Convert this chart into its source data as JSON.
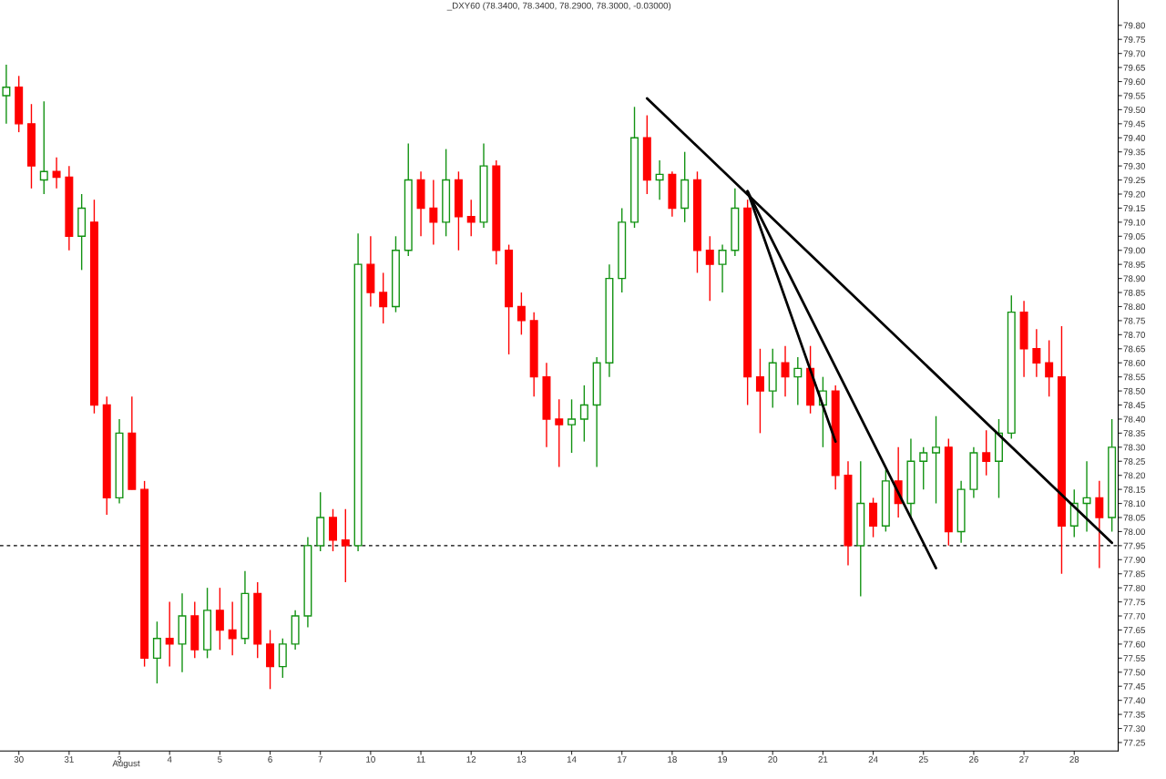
{
  "chart_data": {
    "type": "candlestick",
    "title": "_DXY60 (78.3400, 78.3400, 78.2900, 78.3000, -0.03000)",
    "categories": [
      null,
      "30",
      null,
      null,
      null,
      "31",
      null,
      null,
      null,
      "3",
      null,
      null,
      null,
      "4",
      null,
      null,
      null,
      "5",
      null,
      null,
      null,
      "6",
      null,
      null,
      null,
      "7",
      null,
      null,
      null,
      "10",
      null,
      null,
      null,
      "11",
      null,
      null,
      null,
      "12",
      null,
      null,
      null,
      "13",
      null,
      null,
      null,
      "14",
      null,
      null,
      null,
      "17",
      null,
      null,
      null,
      "18",
      null,
      null,
      null,
      "19",
      null,
      null,
      null,
      "20",
      null,
      null,
      null,
      "21",
      null,
      null,
      null,
      "24",
      null,
      null,
      null,
      "25",
      null,
      null,
      null,
      "26",
      null,
      null,
      null,
      "27",
      null,
      null,
      null,
      "28",
      null,
      null,
      null
    ],
    "ohlc": [
      [
        79.55,
        79.66,
        79.45,
        79.58
      ],
      [
        79.58,
        79.62,
        79.42,
        79.45
      ],
      [
        79.45,
        79.52,
        79.22,
        79.3
      ],
      [
        79.25,
        79.53,
        79.2,
        79.28
      ],
      [
        79.28,
        79.33,
        79.22,
        79.26
      ],
      [
        79.26,
        79.3,
        79.0,
        79.05
      ],
      [
        79.05,
        79.2,
        78.93,
        79.15
      ],
      [
        79.1,
        79.18,
        78.42,
        78.45
      ],
      [
        78.45,
        78.48,
        78.06,
        78.12
      ],
      [
        78.12,
        78.4,
        78.1,
        78.35
      ],
      [
        78.35,
        78.48,
        78.15,
        78.15
      ],
      [
        78.15,
        78.18,
        77.52,
        77.55
      ],
      [
        77.55,
        77.68,
        77.46,
        77.62
      ],
      [
        77.62,
        77.75,
        77.52,
        77.6
      ],
      [
        77.6,
        77.78,
        77.5,
        77.7
      ],
      [
        77.7,
        77.75,
        77.55,
        77.58
      ],
      [
        77.58,
        77.8,
        77.55,
        77.72
      ],
      [
        77.72,
        77.8,
        77.58,
        77.65
      ],
      [
        77.65,
        77.75,
        77.56,
        77.62
      ],
      [
        77.62,
        77.86,
        77.6,
        77.78
      ],
      [
        77.78,
        77.82,
        77.55,
        77.6
      ],
      [
        77.6,
        77.65,
        77.44,
        77.52
      ],
      [
        77.52,
        77.62,
        77.48,
        77.6
      ],
      [
        77.6,
        77.72,
        77.58,
        77.7
      ],
      [
        77.7,
        77.98,
        77.66,
        77.95
      ],
      [
        77.95,
        78.14,
        77.93,
        78.05
      ],
      [
        78.05,
        78.08,
        77.93,
        77.97
      ],
      [
        77.97,
        78.08,
        77.82,
        77.95
      ],
      [
        77.95,
        79.06,
        77.93,
        78.95
      ],
      [
        78.95,
        79.05,
        78.8,
        78.85
      ],
      [
        78.85,
        78.92,
        78.74,
        78.8
      ],
      [
        78.8,
        79.05,
        78.78,
        79.0
      ],
      [
        79.0,
        79.38,
        78.98,
        79.25
      ],
      [
        79.25,
        79.28,
        79.05,
        79.15
      ],
      [
        79.15,
        79.25,
        79.02,
        79.1
      ],
      [
        79.1,
        79.36,
        79.05,
        79.25
      ],
      [
        79.25,
        79.28,
        79.0,
        79.12
      ],
      [
        79.12,
        79.18,
        79.05,
        79.1
      ],
      [
        79.1,
        79.38,
        79.08,
        79.3
      ],
      [
        79.3,
        79.32,
        78.95,
        79.0
      ],
      [
        79.0,
        79.02,
        78.63,
        78.8
      ],
      [
        78.8,
        78.85,
        78.7,
        78.75
      ],
      [
        78.75,
        78.78,
        78.48,
        78.55
      ],
      [
        78.55,
        78.6,
        78.3,
        78.4
      ],
      [
        78.4,
        78.47,
        78.23,
        78.38
      ],
      [
        78.38,
        78.47,
        78.28,
        78.4
      ],
      [
        78.4,
        78.52,
        78.32,
        78.45
      ],
      [
        78.45,
        78.62,
        78.23,
        78.6
      ],
      [
        78.6,
        78.95,
        78.55,
        78.9
      ],
      [
        78.9,
        79.15,
        78.85,
        79.1
      ],
      [
        79.1,
        79.51,
        79.08,
        79.4
      ],
      [
        79.4,
        79.48,
        79.2,
        79.25
      ],
      [
        79.25,
        79.32,
        79.18,
        79.27
      ],
      [
        79.27,
        79.28,
        79.12,
        79.15
      ],
      [
        79.15,
        79.35,
        79.1,
        79.25
      ],
      [
        79.25,
        79.28,
        78.92,
        79.0
      ],
      [
        79.0,
        79.05,
        78.82,
        78.95
      ],
      [
        78.95,
        79.02,
        78.85,
        79.0
      ],
      [
        79.0,
        79.22,
        78.98,
        79.15
      ],
      [
        79.15,
        79.18,
        78.45,
        78.55
      ],
      [
        78.55,
        78.65,
        78.35,
        78.5
      ],
      [
        78.5,
        78.65,
        78.44,
        78.6
      ],
      [
        78.6,
        78.66,
        78.48,
        78.55
      ],
      [
        78.55,
        78.62,
        78.45,
        78.58
      ],
      [
        78.58,
        78.66,
        78.42,
        78.45
      ],
      [
        78.45,
        78.55,
        78.3,
        78.5
      ],
      [
        78.5,
        78.52,
        78.15,
        78.2
      ],
      [
        78.2,
        78.25,
        77.88,
        77.95
      ],
      [
        77.95,
        78.25,
        77.77,
        78.1
      ],
      [
        78.1,
        78.12,
        77.98,
        78.02
      ],
      [
        78.02,
        78.22,
        78.0,
        78.18
      ],
      [
        78.18,
        78.3,
        78.05,
        78.1
      ],
      [
        78.1,
        78.33,
        78.05,
        78.25
      ],
      [
        78.25,
        78.3,
        78.15,
        78.28
      ],
      [
        78.28,
        78.41,
        78.1,
        78.3
      ],
      [
        78.3,
        78.33,
        77.95,
        78.0
      ],
      [
        78.0,
        78.18,
        77.96,
        78.15
      ],
      [
        78.15,
        78.3,
        78.12,
        78.28
      ],
      [
        78.28,
        78.36,
        78.2,
        78.25
      ],
      [
        78.25,
        78.4,
        78.12,
        78.35
      ],
      [
        78.35,
        78.84,
        78.33,
        78.78
      ],
      [
        78.78,
        78.82,
        78.55,
        78.65
      ],
      [
        78.65,
        78.72,
        78.55,
        78.6
      ],
      [
        78.6,
        78.68,
        78.48,
        78.55
      ],
      [
        78.55,
        78.73,
        77.85,
        78.02
      ],
      [
        78.02,
        78.15,
        77.98,
        78.1
      ],
      [
        78.1,
        78.25,
        78.0,
        78.12
      ],
      [
        78.12,
        78.18,
        77.87,
        78.05
      ],
      [
        78.05,
        78.4,
        78.0,
        78.3
      ]
    ],
    "colors": [
      "#129212",
      "#ff0000",
      "#ff0000",
      "#129212",
      "#ff0000",
      "#ff0000",
      "#129212",
      "#ff0000",
      "#ff0000",
      "#129212",
      "#ff0000",
      "#ff0000",
      "#129212",
      "#ff0000",
      "#129212",
      "#ff0000",
      "#129212",
      "#ff0000",
      "#ff0000",
      "#129212",
      "#ff0000",
      "#ff0000",
      "#129212",
      "#129212",
      "#129212",
      "#129212",
      "#ff0000",
      "#ff0000",
      "#129212",
      "#ff0000",
      "#ff0000",
      "#129212",
      "#129212",
      "#ff0000",
      "#ff0000",
      "#129212",
      "#ff0000",
      "#ff0000",
      "#129212",
      "#ff0000",
      "#ff0000",
      "#ff0000",
      "#ff0000",
      "#ff0000",
      "#ff0000",
      "#129212",
      "#129212",
      "#129212",
      "#129212",
      "#129212",
      "#129212",
      "#ff0000",
      "#129212",
      "#ff0000",
      "#129212",
      "#ff0000",
      "#ff0000",
      "#129212",
      "#129212",
      "#ff0000",
      "#ff0000",
      "#129212",
      "#ff0000",
      "#129212",
      "#ff0000",
      "#129212",
      "#ff0000",
      "#ff0000",
      "#129212",
      "#ff0000",
      "#129212",
      "#ff0000",
      "#129212",
      "#129212",
      "#129212",
      "#ff0000",
      "#129212",
      "#129212",
      "#ff0000",
      "#129212",
      "#129212",
      "#ff0000",
      "#ff0000",
      "#ff0000",
      "#ff0000",
      "#129212",
      "#129212",
      "#ff0000",
      "#129212"
    ],
    "series": [
      {
        "type": "line",
        "color": "#000000",
        "values": [
          null,
          null,
          null,
          null,
          null,
          null,
          null,
          null,
          null,
          null,
          null,
          null,
          null,
          null,
          null,
          null,
          null,
          null,
          null,
          null,
          null,
          null,
          null,
          null,
          null,
          null,
          null,
          null,
          null,
          null,
          null,
          null,
          null,
          null,
          null,
          null,
          null,
          null,
          null,
          null,
          null,
          null,
          null,
          null,
          null,
          null,
          null,
          null,
          null,
          null,
          null,
          79.54,
          null,
          null,
          null,
          null,
          null,
          null,
          null,
          null,
          null,
          null,
          null,
          null,
          null,
          null,
          null,
          null,
          null,
          null,
          null,
          null,
          null,
          null,
          null,
          null,
          null,
          null,
          null,
          null,
          null,
          null,
          null,
          null,
          null,
          null,
          null,
          null,
          77.96
        ]
      },
      {
        "type": "line",
        "color": "#000000",
        "values": [
          null,
          null,
          null,
          null,
          null,
          null,
          null,
          null,
          null,
          null,
          null,
          null,
          null,
          null,
          null,
          null,
          null,
          null,
          null,
          null,
          null,
          null,
          null,
          null,
          null,
          null,
          null,
          null,
          null,
          null,
          null,
          null,
          null,
          null,
          null,
          null,
          null,
          null,
          null,
          null,
          null,
          null,
          null,
          null,
          null,
          null,
          null,
          null,
          null,
          null,
          null,
          null,
          null,
          null,
          null,
          null,
          null,
          null,
          null,
          79.21,
          null,
          null,
          null,
          null,
          null,
          null,
          null,
          null,
          null,
          null,
          null,
          null,
          null,
          null,
          77.87,
          null,
          null,
          null,
          null,
          null,
          null,
          null,
          null,
          null,
          null,
          null,
          null,
          null,
          null
        ]
      },
      {
        "type": "line",
        "color": "#000000",
        "values": [
          null,
          null,
          null,
          null,
          null,
          null,
          null,
          null,
          null,
          null,
          null,
          null,
          null,
          null,
          null,
          null,
          null,
          null,
          null,
          null,
          null,
          null,
          null,
          null,
          null,
          null,
          null,
          null,
          null,
          null,
          null,
          null,
          null,
          null,
          null,
          null,
          null,
          null,
          null,
          null,
          null,
          null,
          null,
          null,
          null,
          null,
          null,
          null,
          null,
          null,
          null,
          null,
          null,
          null,
          null,
          null,
          null,
          null,
          null,
          79.21,
          null,
          null,
          null,
          null,
          null,
          null,
          78.32,
          null,
          null,
          null,
          null,
          null,
          null,
          null,
          null,
          null,
          null,
          null,
          null,
          null,
          null,
          null,
          null,
          null,
          null,
          null,
          null,
          null,
          null
        ]
      }
    ],
    "ref_lines": [
      {
        "axis": "y",
        "value": 77.95,
        "color": "#000000",
        "line_style": "dashed"
      }
    ],
    "annotations": [
      "August"
    ],
    "ylim": [
      77.22,
      79.89
    ],
    "yticks": [
      {
        "value": 77.25,
        "label": "77.25"
      },
      {
        "value": 77.3,
        "label": "77.30"
      },
      {
        "value": 77.35,
        "label": "77.35"
      },
      {
        "value": 77.4,
        "label": "77.40"
      },
      {
        "value": 77.45,
        "label": "77.45"
      },
      {
        "value": 77.5,
        "label": "77.50"
      },
      {
        "value": 77.55,
        "label": "77.55"
      },
      {
        "value": 77.6,
        "label": "77.60"
      },
      {
        "value": 77.65,
        "label": "77.65"
      },
      {
        "value": 77.7,
        "label": "77.70"
      },
      {
        "value": 77.75,
        "label": "77.75"
      },
      {
        "value": 77.8,
        "label": "77.80"
      },
      {
        "value": 77.85,
        "label": "77.85"
      },
      {
        "value": 77.9,
        "label": "77.90"
      },
      {
        "value": 77.95,
        "label": "77.95"
      },
      {
        "value": 78.0,
        "label": "78.00"
      },
      {
        "value": 78.05,
        "label": "78.05"
      },
      {
        "value": 78.1,
        "label": "78.10"
      },
      {
        "value": 78.15,
        "label": "78.15"
      },
      {
        "value": 78.2,
        "label": "78.20"
      },
      {
        "value": 78.25,
        "label": "78.25"
      },
      {
        "value": 78.3,
        "label": "78.30"
      },
      {
        "value": 78.35,
        "label": "78.35"
      },
      {
        "value": 78.4,
        "label": "78.40"
      },
      {
        "value": 78.45,
        "label": "78.45"
      },
      {
        "value": 78.5,
        "label": "78.50"
      },
      {
        "value": 78.55,
        "label": "78.55"
      },
      {
        "value": 78.6,
        "label": "78.60"
      },
      {
        "value": 78.65,
        "label": "78.65"
      },
      {
        "value": 78.7,
        "label": "78.70"
      },
      {
        "value": 78.75,
        "label": "78.75"
      },
      {
        "value": 78.8,
        "label": "78.80"
      },
      {
        "value": 78.85,
        "label": "78.85"
      },
      {
        "value": 78.9,
        "label": "78.90"
      },
      {
        "value": 78.95,
        "label": "78.95"
      },
      {
        "value": 79.0,
        "label": "79.00"
      },
      {
        "value": 79.05,
        "label": "79.05"
      },
      {
        "value": 79.1,
        "label": "79.10"
      },
      {
        "value": 79.15,
        "label": "79.15"
      },
      {
        "value": 79.2,
        "label": "79.20"
      },
      {
        "value": 79.25,
        "label": "79.25"
      },
      {
        "value": 79.3,
        "label": "79.30"
      },
      {
        "value": 79.35,
        "label": "79.35"
      },
      {
        "value": 79.4,
        "label": "79.40"
      },
      {
        "value": 79.45,
        "label": "79.45"
      },
      {
        "value": 79.5,
        "label": "79.50"
      },
      {
        "value": 79.55,
        "label": "79.55"
      },
      {
        "value": 79.6,
        "label": "79.60"
      },
      {
        "value": 79.65,
        "label": "79.65"
      },
      {
        "value": 79.7,
        "label": "79.70"
      },
      {
        "value": 79.75,
        "label": "79.75"
      },
      {
        "value": 79.8,
        "label": "79.80"
      }
    ],
    "grid": false,
    "legend": false
  }
}
